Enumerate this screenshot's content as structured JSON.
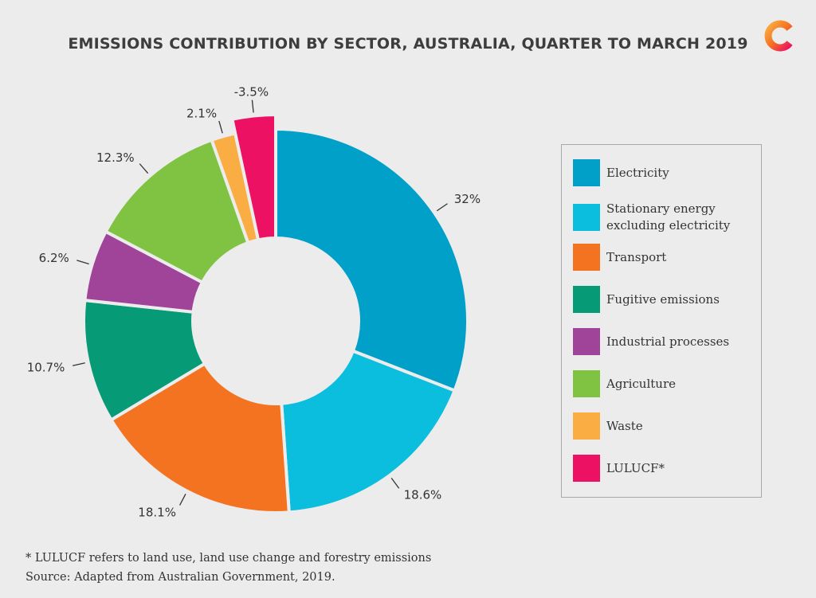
{
  "chart_data": {
    "type": "pie",
    "title": "EMISSIONS CONTRIBUTION BY SECTOR, AUSTRALIA, QUARTER TO MARCH 2019",
    "categories": [
      "Electricity",
      "Stationary energy excluding electricity",
      "Transport",
      "Fugitive emissions",
      "Industrial processes",
      "Agriculture",
      "Waste",
      "LULUCF*"
    ],
    "values": [
      32,
      18.6,
      18.1,
      10.7,
      6.2,
      12.3,
      2.1,
      -3.5
    ],
    "value_labels": [
      "32%",
      "18.6%",
      "18.1%",
      "10.7%",
      "6.2%",
      "12.3%",
      "2.1%",
      "-3.5%"
    ],
    "colors": [
      "#00a0c8",
      "#0bbedd",
      "#f47321",
      "#079a76",
      "#a0449a",
      "#80c241",
      "#f9ad42",
      "#ec1162"
    ],
    "style": "donut",
    "legend_position": "right"
  },
  "legend": {
    "items": [
      {
        "label": "Electricity",
        "color": "#00a0c8"
      },
      {
        "label": "Stationary energy excluding electricity",
        "color": "#0bbedd"
      },
      {
        "label": "Transport",
        "color": "#f47321"
      },
      {
        "label": "Fugitive emissions",
        "color": "#079a76"
      },
      {
        "label": "Industrial processes",
        "color": "#a0449a"
      },
      {
        "label": "Agriculture",
        "color": "#80c241"
      },
      {
        "label": "Waste",
        "color": "#f9ad42"
      },
      {
        "label": "LULUCF*",
        "color": "#ec1162"
      }
    ]
  },
  "footnote": "* LULUCF refers to land use, land use change and forestry emissions",
  "source": "Source: Adapted from Australian Government, 2019.",
  "logo": {
    "icon": "conversation-c-logo-icon",
    "colors": [
      "#f47321",
      "#ec1162",
      "#f9ad42"
    ]
  }
}
